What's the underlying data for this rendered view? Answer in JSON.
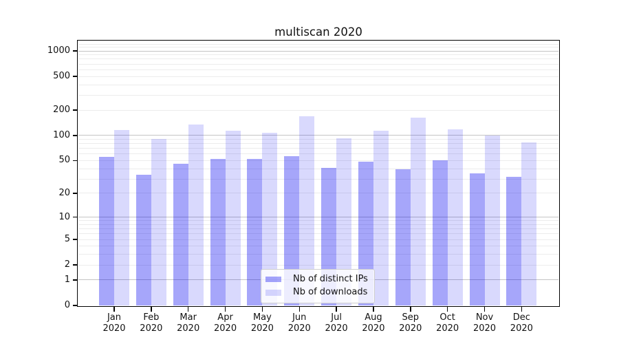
{
  "chart_data": {
    "type": "bar",
    "title": "multiscan 2020",
    "categories": [
      "Jan",
      "Feb",
      "Mar",
      "Apr",
      "May",
      "Jun",
      "Jul",
      "Aug",
      "Sep",
      "Oct",
      "Nov",
      "Dec"
    ],
    "x_tick_year": "2020",
    "series": [
      {
        "name": "Nb of distinct IPs",
        "color": "#0000F259",
        "values": [
          55,
          34,
          46,
          52,
          52,
          57,
          41,
          49,
          39,
          50,
          35,
          32
        ]
      },
      {
        "name": "Nb of downloads",
        "color": "#0000F226",
        "values": [
          116,
          91,
          135,
          114,
          107,
          169,
          92,
          114,
          163,
          119,
          100,
          83
        ]
      }
    ],
    "yscale": "symlog-log1p",
    "ylim": [
      0,
      1300
    ],
    "yticks": [
      0,
      1,
      2,
      5,
      10,
      20,
      50,
      100,
      200,
      500,
      1000
    ],
    "grid": {
      "major": [
        1,
        10,
        100,
        1000
      ],
      "minor": [
        2,
        3,
        4,
        5,
        6,
        7,
        8,
        9,
        20,
        30,
        40,
        50,
        60,
        70,
        80,
        90,
        200,
        300,
        400,
        500,
        600,
        700,
        800,
        900,
        1100,
        1200
      ],
      "major_color": "#c4c4c4",
      "minor_color": "#ececec"
    },
    "legend": {
      "position": "lower-center"
    },
    "axis_color": "#000000",
    "text_color": "#111111",
    "background_color": "#ffffff"
  }
}
